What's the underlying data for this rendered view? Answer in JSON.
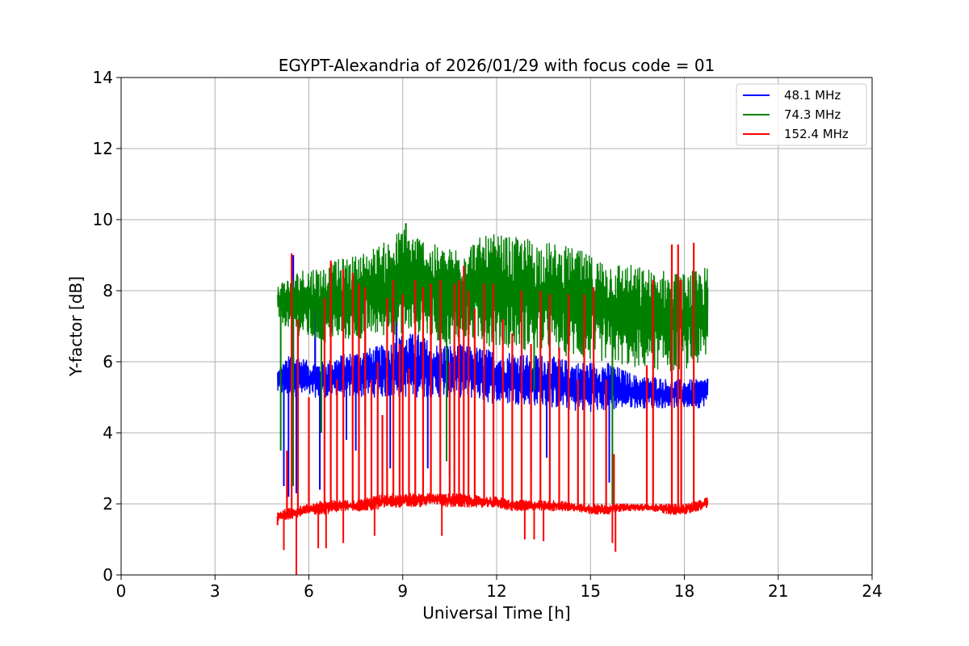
{
  "chart_data": {
    "type": "line",
    "title": "EGYPT-Alexandria of 2026/01/29 with focus code = 01",
    "xlabel": "Universal Time [h]",
    "ylabel": "Y-factor [dB]",
    "xlim": [
      0,
      24
    ],
    "ylim": [
      0,
      14
    ],
    "xticks": [
      0,
      3,
      6,
      9,
      12,
      15,
      18,
      21,
      24
    ],
    "yticks": [
      0,
      2,
      4,
      6,
      8,
      10,
      12,
      14
    ],
    "grid": true,
    "legend_position": "top-right",
    "series": [
      {
        "name": "48.1 MHz",
        "legend_label": " 48.1 MHz",
        "color": "#0000ff",
        "time_range": [
          5.0,
          18.75
        ],
        "x": [
          5.0,
          5.5,
          6.0,
          6.5,
          7.0,
          7.5,
          8.0,
          8.5,
          9.0,
          9.5,
          10.0,
          10.5,
          11.0,
          11.5,
          12.0,
          12.5,
          13.0,
          13.5,
          14.0,
          14.5,
          15.0,
          15.5,
          16.0,
          16.5,
          17.0,
          17.5,
          18.0,
          18.5,
          18.75
        ],
        "lower": [
          5.1,
          5.0,
          5.0,
          5.0,
          5.0,
          5.0,
          5.0,
          5.0,
          5.0,
          5.0,
          5.0,
          5.0,
          5.0,
          4.9,
          4.8,
          4.8,
          4.8,
          4.7,
          4.7,
          4.6,
          4.6,
          4.6,
          4.7,
          4.7,
          4.7,
          4.7,
          4.7,
          4.7,
          4.8
        ],
        "upper": [
          5.8,
          6.3,
          6.0,
          6.0,
          6.2,
          6.3,
          6.4,
          6.5,
          6.8,
          6.8,
          6.5,
          6.5,
          6.5,
          6.4,
          6.3,
          6.3,
          6.2,
          6.2,
          6.1,
          6.0,
          6.0,
          6.0,
          5.8,
          5.6,
          5.6,
          5.5,
          5.5,
          5.5,
          5.6
        ],
        "dips": [
          [
            5.2,
            2.5
          ],
          [
            5.35,
            2.2
          ],
          [
            5.6,
            2.3
          ],
          [
            6.35,
            2.4
          ],
          [
            7.2,
            3.8
          ],
          [
            7.5,
            3.5
          ],
          [
            8.6,
            3.0
          ],
          [
            9.8,
            3.0
          ],
          [
            10.5,
            2.8
          ],
          [
            13.1,
            2.9
          ],
          [
            13.6,
            3.3
          ],
          [
            15.6,
            2.6
          ]
        ],
        "spikes": [
          [
            5.5,
            9.0
          ],
          [
            6.2,
            7.5
          ],
          [
            8.8,
            7.3
          ],
          [
            10.2,
            7.4
          ]
        ]
      },
      {
        "name": "74.3 MHz",
        "legend_label": " 74.3 MHz",
        "color": "#008000",
        "time_range": [
          5.0,
          18.75
        ],
        "x": [
          5.0,
          5.5,
          6.0,
          6.5,
          7.0,
          7.5,
          8.0,
          8.5,
          9.0,
          9.5,
          10.0,
          10.5,
          11.0,
          11.5,
          12.0,
          12.5,
          13.0,
          13.5,
          14.0,
          14.5,
          15.0,
          15.5,
          16.0,
          16.5,
          17.0,
          17.5,
          18.0,
          18.5,
          18.75
        ],
        "lower": [
          7.2,
          6.8,
          6.6,
          6.5,
          6.6,
          6.6,
          6.7,
          6.7,
          6.8,
          6.8,
          6.6,
          6.5,
          6.6,
          6.5,
          6.4,
          6.4,
          6.3,
          6.3,
          6.2,
          6.1,
          6.0,
          6.0,
          5.9,
          5.8,
          5.8,
          5.7,
          5.8,
          5.9,
          6.0
        ],
        "upper": [
          8.2,
          8.5,
          8.7,
          8.7,
          8.9,
          9.0,
          9.2,
          9.4,
          9.8,
          9.6,
          9.3,
          9.2,
          9.4,
          9.5,
          9.6,
          9.5,
          9.5,
          9.4,
          9.3,
          9.2,
          9.0,
          8.9,
          8.8,
          8.7,
          8.6,
          8.6,
          8.5,
          8.6,
          8.7
        ],
        "dips": [
          [
            5.1,
            3.5
          ],
          [
            5.5,
            2.5
          ],
          [
            6.4,
            4.0
          ],
          [
            7.8,
            4.2
          ],
          [
            9.0,
            5.0
          ],
          [
            10.4,
            3.2
          ],
          [
            13.2,
            5.2
          ],
          [
            15.7,
            2.0
          ]
        ],
        "spikes": [
          [
            9.1,
            9.9
          ]
        ]
      },
      {
        "name": "152.4 MHz",
        "legend_label": "152.4 MHz",
        "color": "#ff0000",
        "time_range": [
          5.0,
          18.75
        ],
        "x": [
          5.0,
          5.5,
          6.0,
          6.5,
          7.0,
          7.5,
          8.0,
          8.5,
          9.0,
          9.5,
          10.0,
          10.5,
          11.0,
          11.5,
          12.0,
          12.5,
          13.0,
          13.5,
          14.0,
          14.5,
          15.0,
          15.5,
          16.0,
          16.5,
          17.0,
          17.5,
          18.0,
          18.5,
          18.75
        ],
        "lower": [
          1.5,
          1.6,
          1.7,
          1.7,
          1.8,
          1.8,
          1.8,
          1.9,
          1.9,
          1.9,
          2.0,
          1.9,
          1.9,
          1.9,
          1.9,
          1.8,
          1.8,
          1.8,
          1.8,
          1.8,
          1.7,
          1.7,
          1.8,
          1.8,
          1.8,
          1.7,
          1.7,
          1.8,
          1.9
        ],
        "upper": [
          1.8,
          1.9,
          2.0,
          2.1,
          2.1,
          2.1,
          2.2,
          2.3,
          2.3,
          2.3,
          2.3,
          2.3,
          2.3,
          2.2,
          2.2,
          2.1,
          2.1,
          2.1,
          2.1,
          2.0,
          2.0,
          2.0,
          2.0,
          2.0,
          2.0,
          2.0,
          2.0,
          2.1,
          2.2
        ],
        "dips": [
          [
            5.0,
            1.4
          ],
          [
            5.2,
            0.7
          ],
          [
            5.6,
            0.0
          ],
          [
            6.3,
            0.75
          ],
          [
            6.55,
            0.75
          ],
          [
            7.1,
            0.9
          ],
          [
            8.1,
            1.1
          ],
          [
            10.25,
            1.1
          ],
          [
            12.9,
            1.0
          ],
          [
            13.2,
            1.0
          ],
          [
            13.5,
            0.95
          ],
          [
            15.7,
            0.9
          ],
          [
            15.8,
            0.65
          ]
        ],
        "spikes": [
          [
            5.3,
            3.5
          ],
          [
            5.45,
            9.05
          ],
          [
            5.65,
            7.2
          ],
          [
            6.0,
            5.0
          ],
          [
            6.5,
            7.8
          ],
          [
            6.7,
            8.85
          ],
          [
            6.9,
            5.5
          ],
          [
            7.1,
            8.6
          ],
          [
            7.4,
            8.5
          ],
          [
            7.6,
            8.2
          ],
          [
            7.8,
            8.1
          ],
          [
            8.0,
            5.5
          ],
          [
            8.2,
            6.0
          ],
          [
            8.35,
            4.5
          ],
          [
            8.5,
            7.8
          ],
          [
            8.7,
            8.3
          ],
          [
            8.9,
            6.5
          ],
          [
            9.0,
            7.9
          ],
          [
            9.2,
            5.8
          ],
          [
            9.4,
            8.3
          ],
          [
            9.65,
            8.1
          ],
          [
            9.9,
            8.2
          ],
          [
            10.2,
            8.3
          ],
          [
            10.5,
            6.0
          ],
          [
            10.65,
            8.2
          ],
          [
            10.8,
            8.3
          ],
          [
            10.95,
            8.7
          ],
          [
            11.1,
            8.0
          ],
          [
            11.3,
            7.5
          ],
          [
            11.6,
            8.2
          ],
          [
            11.9,
            8.2
          ],
          [
            12.2,
            7.2
          ],
          [
            12.5,
            6.8
          ],
          [
            12.8,
            8.0
          ],
          [
            13.1,
            6.5
          ],
          [
            13.4,
            8.0
          ],
          [
            13.7,
            7.9
          ],
          [
            14.0,
            6.4
          ],
          [
            14.3,
            7.9
          ],
          [
            14.6,
            5.5
          ],
          [
            14.8,
            7.9
          ],
          [
            15.1,
            8.1
          ],
          [
            15.5,
            5.5
          ],
          [
            15.75,
            3.4
          ],
          [
            16.8,
            5.9
          ],
          [
            17.0,
            8.3
          ],
          [
            17.6,
            9.3
          ],
          [
            17.8,
            9.3
          ],
          [
            17.9,
            8.3
          ],
          [
            18.3,
            9.35
          ]
        ]
      }
    ]
  }
}
